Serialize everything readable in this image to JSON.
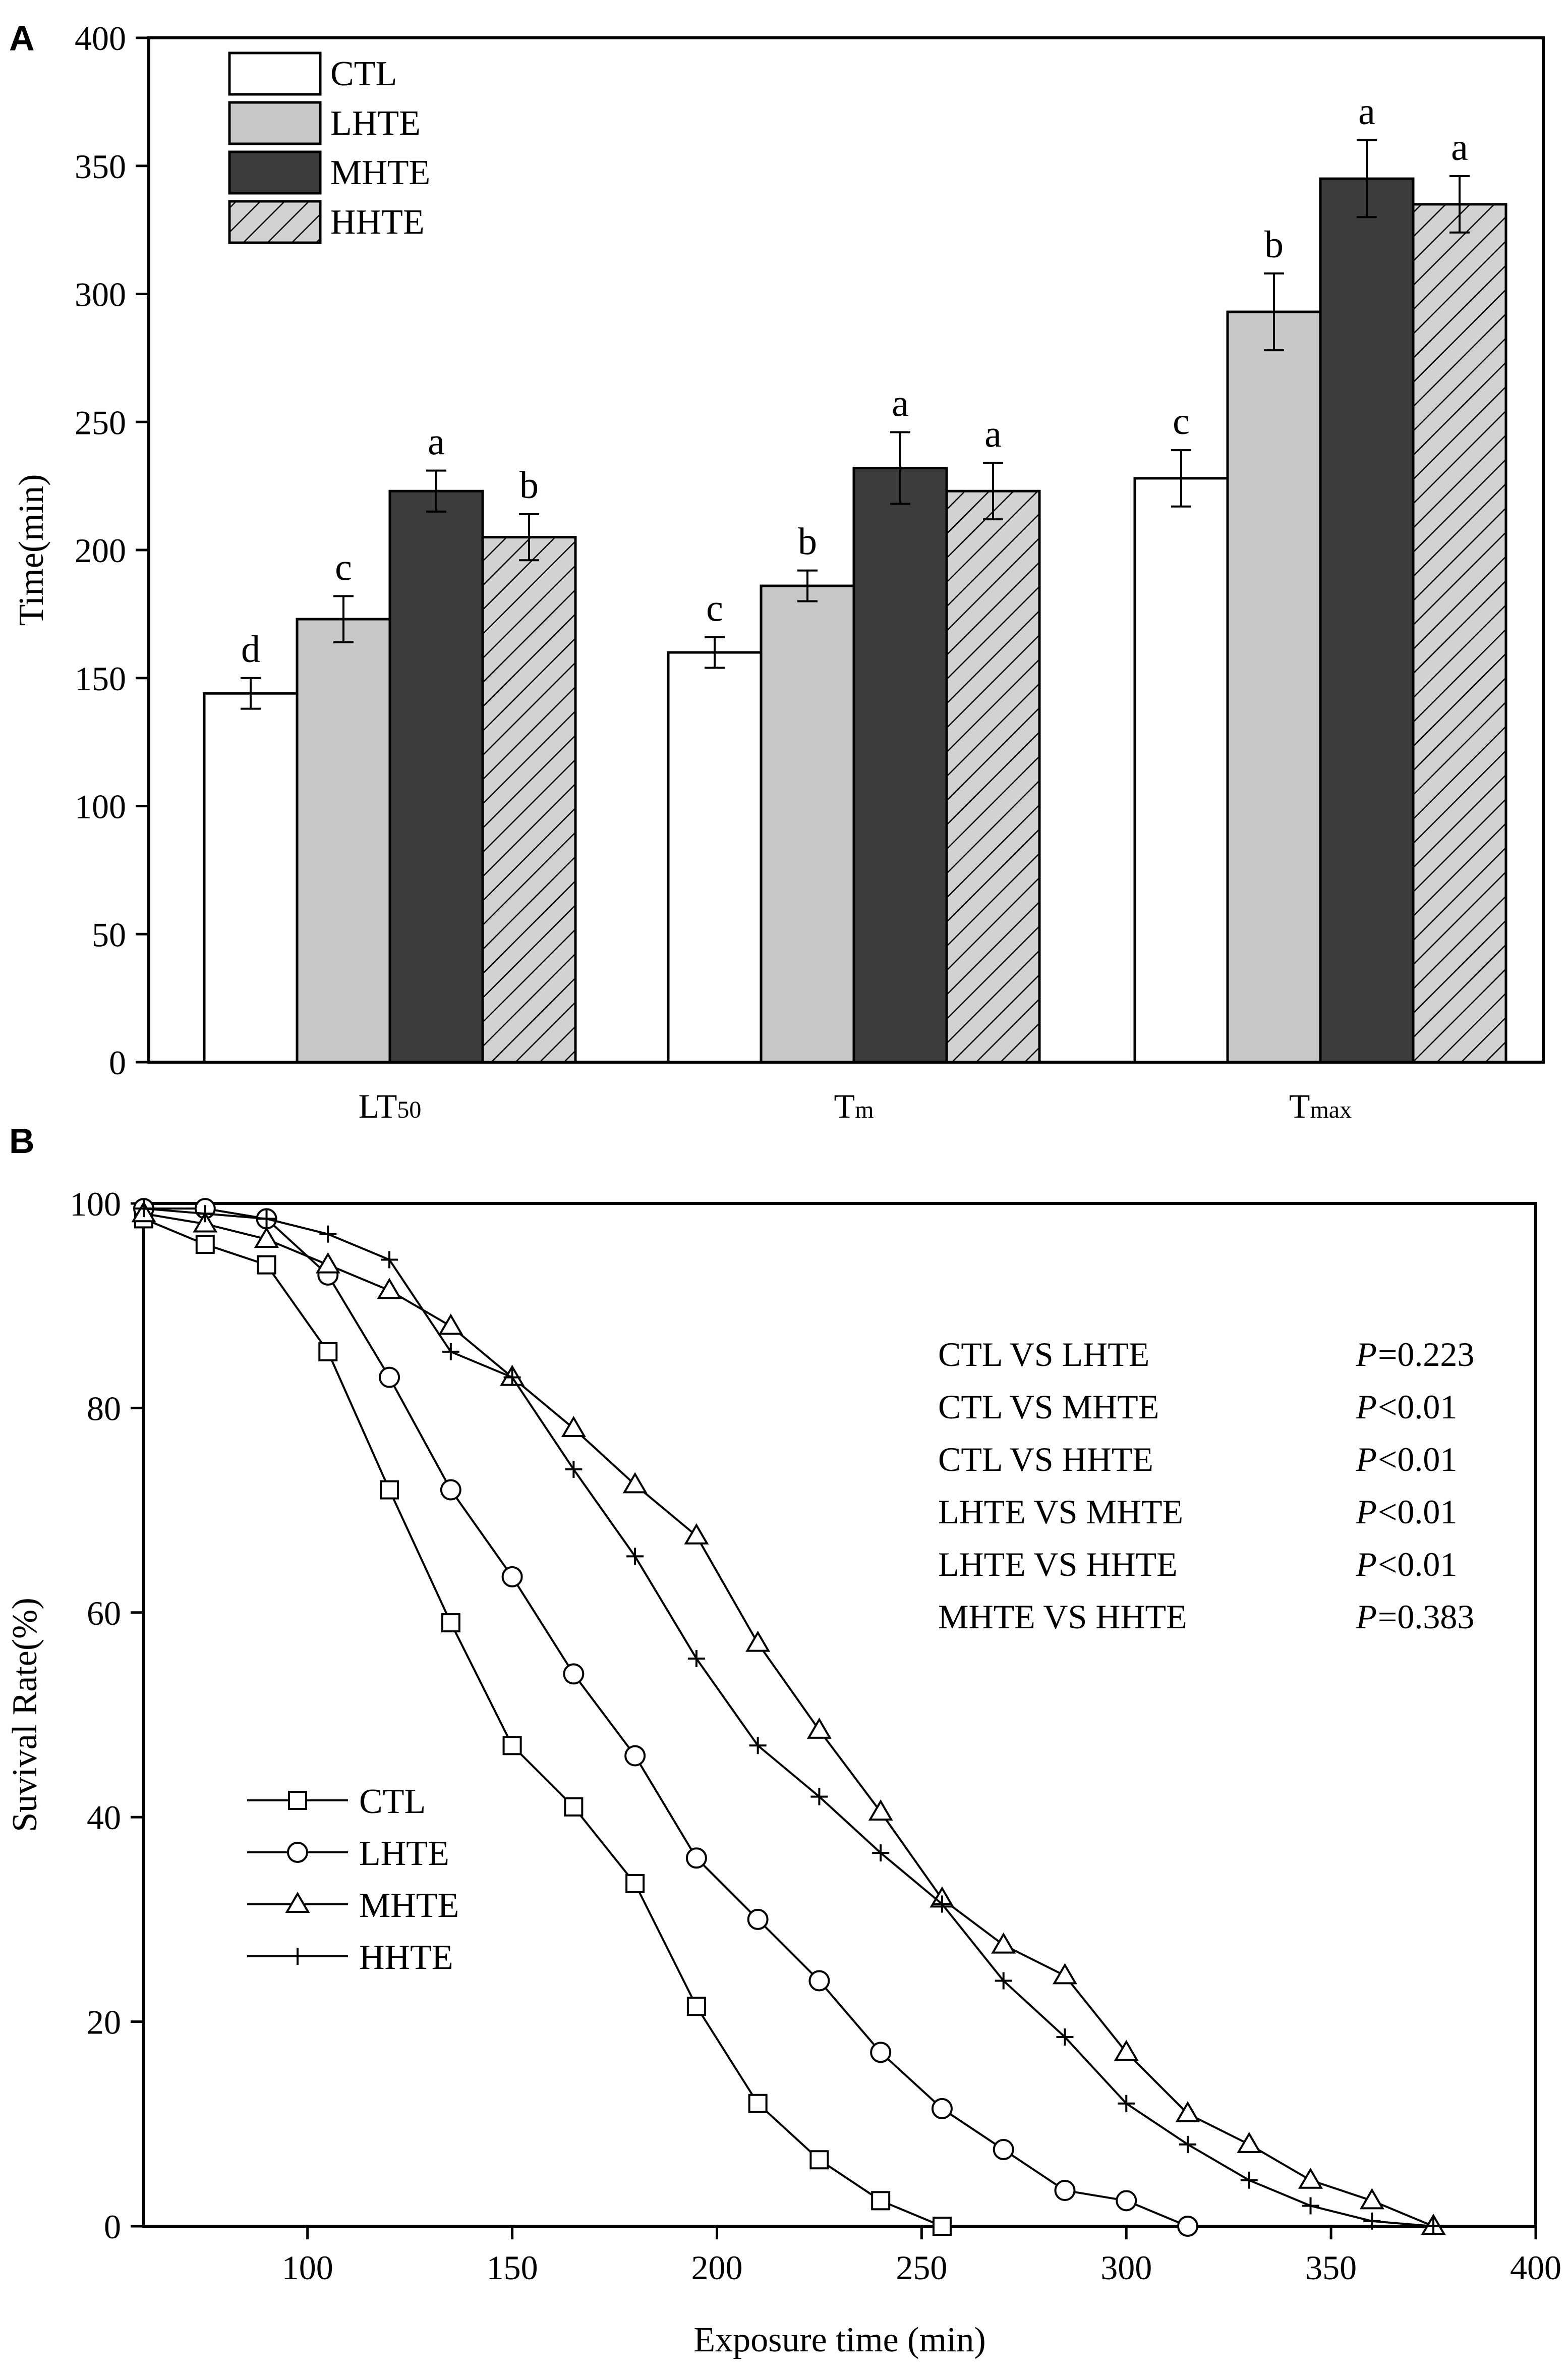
{
  "panels": {
    "a": "A",
    "b": "B"
  },
  "chart_data": [
    {
      "type": "bar",
      "title": "",
      "xlabel": "",
      "ylabel": "Time(min)",
      "ylim": [
        0,
        400
      ],
      "yticks": [
        0,
        50,
        100,
        150,
        200,
        250,
        300,
        350,
        400
      ],
      "categories": [
        {
          "main": "LT",
          "sub": "50"
        },
        {
          "main": "T",
          "sub": "m"
        },
        {
          "main": "T",
          "sub": "max"
        }
      ],
      "series": [
        {
          "name": "CTL",
          "fill": "#ffffff",
          "values": [
            144,
            160,
            228
          ],
          "errors": [
            6,
            6,
            11
          ],
          "letters": [
            "d",
            "c",
            "c"
          ]
        },
        {
          "name": "LHTE",
          "fill": "#c8c8c8",
          "values": [
            173,
            186,
            293
          ],
          "errors": [
            9,
            6,
            15
          ],
          "letters": [
            "c",
            "b",
            "b"
          ]
        },
        {
          "name": "MHTE",
          "fill": "#3c3c3c",
          "values": [
            223,
            232,
            345
          ],
          "errors": [
            8,
            14,
            15
          ],
          "letters": [
            "a",
            "a",
            "a"
          ]
        },
        {
          "name": "HHTE",
          "fill": "hatch",
          "values": [
            205,
            223,
            335
          ],
          "errors": [
            9,
            11,
            11
          ],
          "letters": [
            "b",
            "a",
            "a"
          ]
        }
      ],
      "legend": {
        "position": "top-left"
      }
    },
    {
      "type": "line",
      "title": "",
      "xlabel": "Exposure time (min)",
      "ylabel": "Suvival Rate(%)",
      "xlim": [
        60,
        400
      ],
      "ylim": [
        0,
        100
      ],
      "xticks": [
        100,
        150,
        200,
        250,
        300,
        350,
        400
      ],
      "yticks": [
        0,
        20,
        40,
        60,
        80,
        100
      ],
      "series": [
        {
          "name": "CTL",
          "marker": "square",
          "x": [
            60,
            75,
            90,
            105,
            120,
            135,
            150,
            165,
            180,
            195,
            210,
            225,
            240,
            255
          ],
          "y": [
            98.5,
            96,
            94,
            85.5,
            72,
            59,
            47,
            41,
            33.5,
            21.5,
            12,
            6.5,
            2.5,
            0
          ]
        },
        {
          "name": "LHTE",
          "marker": "circle",
          "x": [
            60,
            75,
            90,
            105,
            120,
            135,
            150,
            165,
            180,
            195,
            210,
            225,
            240,
            255,
            270,
            285,
            300,
            315
          ],
          "y": [
            99.5,
            99.5,
            98.5,
            93,
            83,
            72,
            63.5,
            54,
            46,
            36,
            30,
            24,
            17,
            11.5,
            7.5,
            3.5,
            2.5,
            0
          ]
        },
        {
          "name": "MHTE",
          "marker": "triangle",
          "x": [
            60,
            75,
            90,
            105,
            120,
            135,
            150,
            165,
            180,
            195,
            210,
            225,
            240,
            255,
            270,
            285,
            300,
            315,
            330,
            345,
            360,
            375
          ],
          "y": [
            99,
            98,
            96.5,
            94,
            91.5,
            88,
            83,
            78,
            72.5,
            67.5,
            57,
            48.5,
            40.5,
            32,
            27.5,
            24.5,
            17,
            11,
            8,
            4.5,
            2.5,
            0
          ]
        },
        {
          "name": "HHTE",
          "marker": "plus",
          "x": [
            60,
            75,
            90,
            105,
            120,
            135,
            150,
            165,
            180,
            195,
            210,
            225,
            240,
            255,
            270,
            285,
            300,
            315,
            330,
            345,
            360,
            375
          ],
          "y": [
            99.5,
            99,
            98.5,
            97,
            94.5,
            85.5,
            83,
            74,
            65.5,
            55.5,
            47,
            42,
            36.5,
            31.5,
            24,
            18.5,
            12,
            8,
            4.5,
            2,
            0.5,
            0
          ]
        }
      ],
      "annotations": [
        {
          "left": "CTL  VS  LHTE",
          "p": "P",
          "value": "=0.223"
        },
        {
          "left": "CTL  VS  MHTE",
          "p": "P",
          "value": "<0.01"
        },
        {
          "left": "CTL  VS  HHTE",
          "p": "P",
          "value": "<0.01"
        },
        {
          "left": "LHTE  VS  MHTE",
          "p": "P",
          "value": "<0.01"
        },
        {
          "left": "LHTE  VS  HHTE",
          "p": "P",
          "value": "<0.01"
        },
        {
          "left": "MHTE VS  HHTE",
          "p": "P",
          "value": "=0.383"
        }
      ],
      "legend": {
        "position": "bottom-left"
      }
    }
  ]
}
